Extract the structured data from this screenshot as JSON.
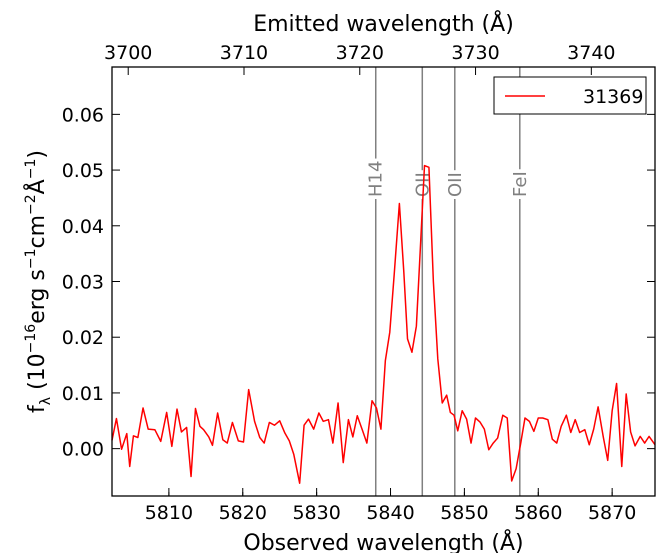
{
  "chart_data": {
    "type": "line",
    "title": "",
    "xlabel": "Observed wavelength (Å)",
    "ylabel": "f_λ (10^-16 erg s^-1 cm^-2 Å^-1)",
    "top_xlabel": "Emitted wavelength (Å)",
    "xlim": [
      5802.3,
      5875.8
    ],
    "ylim": [
      -0.0085,
      0.0685
    ],
    "top_xlim": [
      3698.6,
      3745.5
    ],
    "x_ticks": [
      5810,
      5820,
      5830,
      5840,
      5850,
      5860,
      5870
    ],
    "y_ticks": [
      0.0,
      0.01,
      0.02,
      0.03,
      0.04,
      0.05,
      0.06
    ],
    "y_tick_labels": [
      "0.00",
      "0.01",
      "0.02",
      "0.03",
      "0.04",
      "0.05",
      "0.06"
    ],
    "top_ticks": [
      3700,
      3710,
      3720,
      3730,
      3740
    ],
    "legend_position": "top-right",
    "series": [
      {
        "name": "31369",
        "color": "#ff0000",
        "x": [
          5802.3,
          5802.9,
          5803.6,
          5804.3,
          5804.7,
          5805.2,
          5805.8,
          5806.5,
          5807.2,
          5808.1,
          5808.9,
          5809.7,
          5810.4,
          5811.1,
          5811.7,
          5812.4,
          5813.0,
          5813.6,
          5814.2,
          5814.7,
          5815.4,
          5815.9,
          5816.6,
          5817.3,
          5817.9,
          5818.6,
          5819.4,
          5820.1,
          5820.8,
          5821.6,
          5822.3,
          5822.9,
          5823.6,
          5824.3,
          5825.0,
          5825.7,
          5826.3,
          5826.9,
          5827.7,
          5828.3,
          5828.9,
          5829.6,
          5830.3,
          5830.9,
          5831.6,
          5832.2,
          5832.9,
          5833.6,
          5834.3,
          5834.9,
          5835.5,
          5836.2,
          5836.8,
          5837.5,
          5838.1,
          5838.7,
          5839.3,
          5839.9,
          5840.5,
          5841.2,
          5841.8,
          5842.3,
          5842.9,
          5843.5,
          5844.0,
          5844.6,
          5845.2,
          5845.8,
          5846.4,
          5847.0,
          5847.6,
          5848.1,
          5848.6,
          5849.1,
          5849.7,
          5850.3,
          5850.9,
          5851.5,
          5852.1,
          5852.7,
          5853.3,
          5853.9,
          5854.5,
          5855.2,
          5855.8,
          5856.4,
          5857.0,
          5857.6,
          5858.2,
          5858.8,
          5859.4,
          5860.0,
          5860.6,
          5861.3,
          5861.9,
          5862.5,
          5863.1,
          5863.8,
          5864.4,
          5865.0,
          5865.6,
          5866.3,
          5866.9,
          5867.5,
          5868.1,
          5868.8,
          5869.4,
          5870.0,
          5870.6,
          5871.3,
          5871.9,
          5872.5,
          5873.1,
          5873.8,
          5874.4,
          5875.0,
          5875.8
        ],
        "y": [
          0.0015,
          0.0054,
          -0.0001,
          0.0027,
          -0.0032,
          0.0023,
          0.002,
          0.0073,
          0.0035,
          0.0034,
          0.0013,
          0.0065,
          0.0004,
          0.0071,
          0.003,
          0.0038,
          -0.005,
          0.0072,
          0.004,
          0.0034,
          0.0021,
          0.0006,
          0.0064,
          0.0016,
          0.001,
          0.0047,
          0.0014,
          0.0012,
          0.0106,
          0.0049,
          0.002,
          0.001,
          0.0047,
          0.0042,
          0.005,
          0.0028,
          0.0014,
          -0.001,
          -0.0062,
          0.0042,
          0.0053,
          0.0035,
          0.0064,
          0.0049,
          0.0052,
          0.001,
          0.0082,
          -0.0025,
          0.0052,
          0.0021,
          0.0059,
          0.0033,
          0.001,
          0.0086,
          0.0073,
          0.0035,
          0.0158,
          0.0209,
          0.0313,
          0.044,
          0.0317,
          0.0197,
          0.0173,
          0.022,
          0.035,
          0.0508,
          0.0505,
          0.03,
          0.0161,
          0.0082,
          0.0096,
          0.0065,
          0.006,
          0.0032,
          0.0068,
          0.0053,
          0.001,
          0.0055,
          0.0048,
          0.0035,
          -0.0002,
          0.001,
          0.0019,
          0.006,
          0.0055,
          -0.0058,
          -0.0036,
          0.0008,
          0.0055,
          0.0049,
          0.0031,
          0.0055,
          0.0055,
          0.0052,
          0.0017,
          0.001,
          0.004,
          0.006,
          0.0029,
          0.0052,
          0.0029,
          0.0034,
          0.0007,
          0.0035,
          0.0075,
          0.0021,
          -0.0021,
          0.0068,
          0.0117,
          -0.0032,
          0.0098,
          0.003,
          0.0005,
          0.0022,
          0.001,
          0.0022,
          0.0007
        ]
      }
    ],
    "annotations": [
      {
        "label": "H14",
        "x": 5838.0
      },
      {
        "label": "OII",
        "x": 5844.3
      },
      {
        "label": "OII",
        "x": 5848.7
      },
      {
        "label": "FeI",
        "x": 5857.5
      }
    ],
    "grid": false
  }
}
